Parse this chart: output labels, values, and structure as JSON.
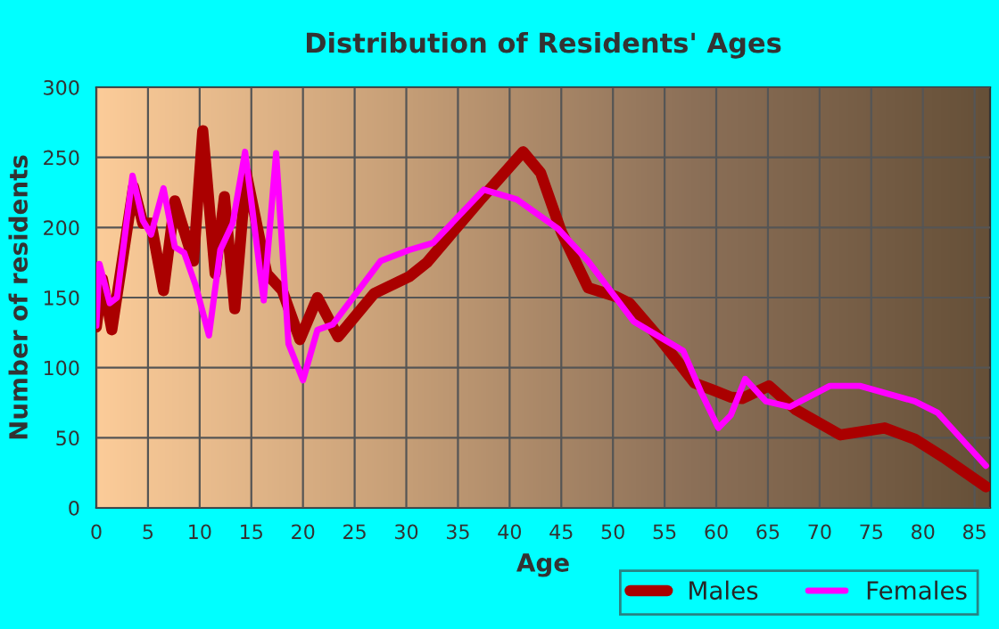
{
  "chart_data": {
    "type": "line",
    "title": "Distribution of Residents' Ages",
    "xlabel": "Age",
    "ylabel": "Number of residents",
    "xlim": [
      0,
      86.5
    ],
    "xticks": [
      0,
      5,
      10,
      15,
      20,
      25,
      30,
      35,
      40,
      45,
      50,
      55,
      60,
      65,
      70,
      75,
      80,
      85
    ],
    "ylim": [
      0,
      300
    ],
    "yticks": [
      0,
      50,
      100,
      150,
      200,
      250,
      300
    ],
    "grid": true,
    "legend": "bottom right",
    "series": [
      {
        "name": "Males",
        "color": "#aa0000",
        "x": [
          0,
          0.6,
          1.5,
          3.6,
          4.5,
          5.3,
          6.5,
          7.6,
          9.4,
          10.3,
          11.5,
          12.4,
          13.4,
          14.5,
          16.5,
          18,
          19.7,
          21.4,
          23.4,
          26.9,
          30.3,
          32,
          37.2,
          41.3,
          43,
          45,
          47.6,
          50.2,
          51.6,
          54.5,
          57.9,
          59.7,
          61.4,
          62.5,
          65.1,
          67.7,
          72,
          76.3,
          79.2,
          82,
          86.1
        ],
        "values": [
          129,
          163,
          127,
          229,
          203,
          203,
          155,
          219,
          176,
          269,
          167,
          222,
          142,
          239,
          167,
          155,
          120,
          150,
          122,
          153,
          165,
          175,
          220,
          254,
          239,
          197,
          157,
          151,
          146,
          121,
          89,
          84,
          79,
          78,
          87,
          70,
          52,
          57,
          49,
          36,
          15
        ]
      },
      {
        "name": "Females",
        "color": "#ff00ff",
        "x": [
          0,
          0.3,
          1.3,
          2,
          3.5,
          4.5,
          5.3,
          6.5,
          7.6,
          8.5,
          9.6,
          10.9,
          12,
          13.2,
          14.4,
          16.2,
          17.4,
          18.6,
          20,
          21.4,
          22.9,
          27.5,
          30.3,
          32.6,
          37.5,
          40.7,
          44.7,
          47.6,
          52,
          56.8,
          58.5,
          60.2,
          61.4,
          62.8,
          64.8,
          67.1,
          71,
          73.9,
          79.2,
          81.4,
          86.1
        ],
        "values": [
          130,
          174,
          146,
          150,
          237,
          205,
          195,
          228,
          186,
          182,
          159,
          123,
          184,
          203,
          254,
          148,
          253,
          117,
          91,
          127,
          131,
          176,
          184,
          189,
          227,
          220,
          199,
          176,
          133,
          112,
          83,
          57,
          66,
          92,
          76,
          72,
          87,
          87,
          76,
          68,
          30
        ]
      }
    ]
  }
}
